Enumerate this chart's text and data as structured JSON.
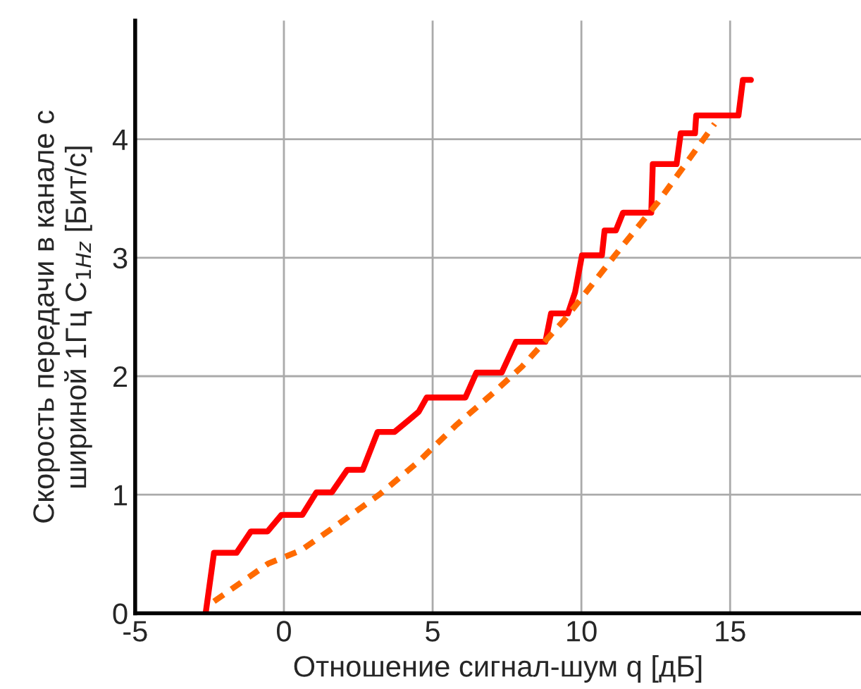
{
  "chart_data": {
    "type": "line",
    "xlabel": "Отношение сигнал-шум q [дБ]",
    "ylabel": "Скорость передачи в канале с\nшириной 1Гц C$_{1Hz}$ [Бит/с]",
    "xlim": [
      -5,
      19.4
    ],
    "ylim": [
      0,
      5
    ],
    "xticks": [
      -5,
      0,
      5,
      10,
      15
    ],
    "yticks": [
      0,
      1,
      2,
      3,
      4
    ],
    "grid": true,
    "legend": false,
    "series": [
      {
        "color": "#ff0000",
        "line_style": "solid",
        "x": [
          -2.63,
          -2.35,
          -1.59,
          -1.11,
          -0.55,
          -0.08,
          0.62,
          1.09,
          1.61,
          2.13,
          2.65,
          3.15,
          3.72,
          4.2,
          4.53,
          4.8,
          6.1,
          6.47,
          7.32,
          7.8,
          8.79,
          8.98,
          9.55,
          9.79,
          10.02,
          10.69,
          10.78,
          11.16,
          11.4,
          12.35,
          12.4,
          13.2,
          13.34,
          13.82,
          13.86,
          15.28,
          15.43,
          15.7
        ],
        "values": [
          0,
          0.51,
          0.51,
          0.69,
          0.69,
          0.83,
          0.83,
          1.02,
          1.02,
          1.21,
          1.21,
          1.53,
          1.53,
          1.63,
          1.7,
          1.82,
          1.82,
          2.03,
          2.03,
          2.29,
          2.29,
          2.53,
          2.53,
          2.71,
          3.02,
          3.02,
          3.23,
          3.23,
          3.38,
          3.38,
          3.79,
          3.79,
          4.05,
          4.05,
          4.2,
          4.2,
          4.5,
          4.5
        ]
      },
      {
        "color": "#ff6a00",
        "line_style": "dashed",
        "x": [
          -2.35,
          -0.52,
          0.57,
          1.82,
          3.25,
          4.53,
          5.76,
          7.04,
          8.0,
          9.41,
          11.16,
          12.58,
          14.48
        ],
        "values": [
          0.1,
          0.42,
          0.53,
          0.75,
          1.01,
          1.28,
          1.58,
          1.86,
          2.08,
          2.47,
          3.03,
          3.47,
          4.13
        ]
      }
    ]
  }
}
